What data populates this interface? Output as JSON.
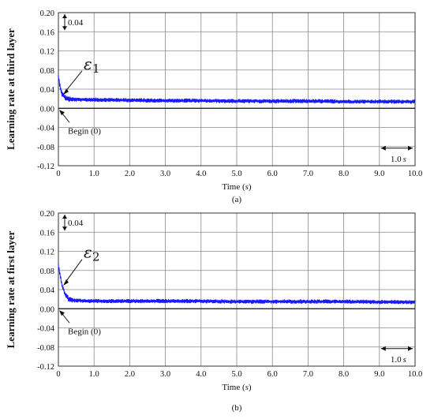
{
  "chart_data": [
    {
      "type": "line",
      "title": "",
      "xlabel": "Time (s)",
      "ylabel": "Learning rate at third layer",
      "caption": "(a)",
      "xlim": [
        0,
        10
      ],
      "ylim": [
        -0.12,
        0.2
      ],
      "x_ticks": [
        "0",
        "1.0",
        "2.0",
        "3.0",
        "4.0",
        "5.0",
        "6.0",
        "7.0",
        "8.0",
        "9.0",
        "10.0"
      ],
      "y_ticks": [
        "0.20",
        "0.16",
        "0.12",
        "0.08",
        "0.04",
        "0.00",
        "-0.04",
        "-0.08",
        "-0.12"
      ],
      "grid": true,
      "annotations": {
        "scale_y": "0.04",
        "epsilon": "ε",
        "epsilon_sub": "1",
        "begin": "Begin (0)",
        "scale_x": "1.0",
        "scale_x_unit": "s"
      },
      "series": [
        {
          "x": [
            0,
            0.05,
            0.1,
            0.2,
            0.3,
            0.5,
            1,
            2,
            3,
            4,
            5,
            6,
            7,
            8,
            9,
            10
          ],
          "y": [
            0.065,
            0.045,
            0.03,
            0.022,
            0.019,
            0.018,
            0.018,
            0.017,
            0.016,
            0.016,
            0.015,
            0.015,
            0.015,
            0.014,
            0.014,
            0.014
          ]
        }
      ]
    },
    {
      "type": "line",
      "title": "",
      "xlabel": "Time (s)",
      "ylabel": "Learning rate at first layer",
      "caption": "(b)",
      "xlim": [
        0,
        10
      ],
      "ylim": [
        -0.12,
        0.2
      ],
      "x_ticks": [
        "0",
        "1.0",
        "2.0",
        "3.0",
        "4.0",
        "5.0",
        "6.0",
        "7.0",
        "8.0",
        "9.0",
        "10.0"
      ],
      "y_ticks": [
        "0.20",
        "0.16",
        "0.12",
        "0.08",
        "0.04",
        "0.00",
        "-0.04",
        "-0.08",
        "-0.12"
      ],
      "grid": true,
      "annotations": {
        "scale_y": "0.04",
        "epsilon": "ε",
        "epsilon_sub": "2",
        "begin": "Begin (0)",
        "scale_x": "1.0",
        "scale_x_unit": "s"
      },
      "series": [
        {
          "x": [
            0,
            0.05,
            0.1,
            0.2,
            0.3,
            0.5,
            1,
            2,
            3,
            4,
            5,
            6,
            7,
            8,
            9,
            10
          ],
          "y": [
            0.09,
            0.07,
            0.05,
            0.028,
            0.019,
            0.017,
            0.016,
            0.016,
            0.016,
            0.016,
            0.015,
            0.015,
            0.015,
            0.015,
            0.014,
            0.014
          ]
        }
      ]
    }
  ]
}
